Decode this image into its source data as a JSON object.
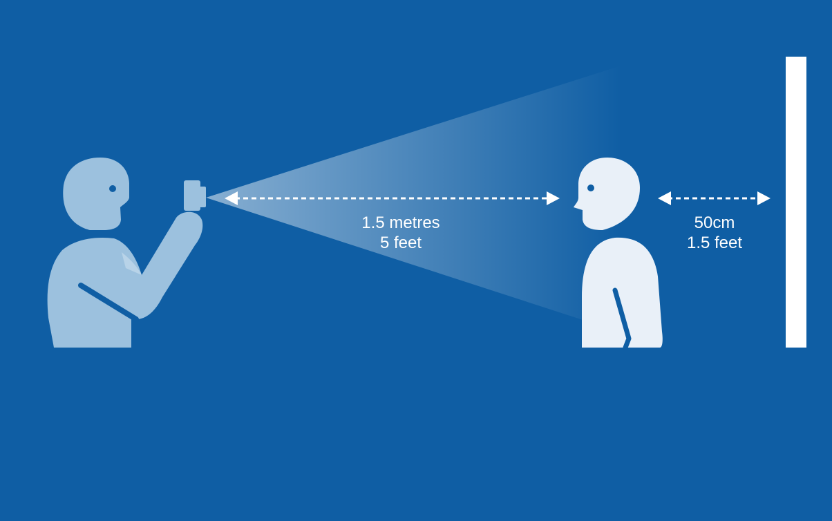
{
  "colors": {
    "background": "#0f5ea4",
    "photographer": "#9cc1de",
    "subject": "#e9f0f8",
    "wall": "#ffffff",
    "eye": "#0f5ea4",
    "arrow": "#ffffff",
    "label_text": "#ffffff"
  },
  "camera_distance": {
    "metric": "1.5 metres",
    "imperial": "5 feet"
  },
  "wall_distance": {
    "metric": "50cm",
    "imperial": "1.5 feet"
  }
}
